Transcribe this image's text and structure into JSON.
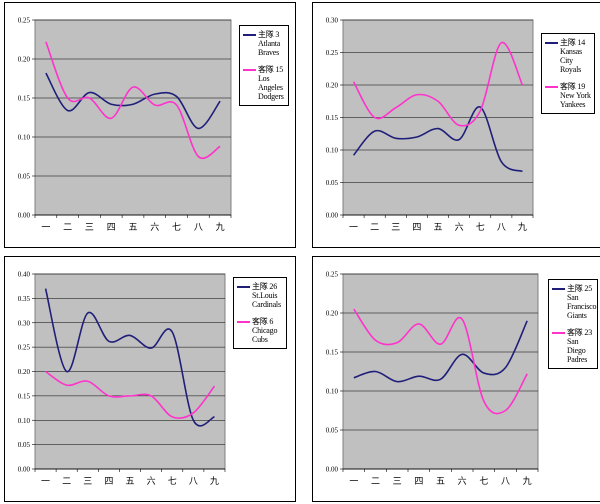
{
  "colors": {
    "team1": "#1f1f7a",
    "team2": "#ff33cc",
    "plot_bg": "#c0c0c0",
    "grid": "#000000"
  },
  "chart_data": [
    {
      "type": "line",
      "x": [
        "一",
        "二",
        "三",
        "四",
        "五",
        "六",
        "七",
        "八",
        "九"
      ],
      "ylim": [
        0,
        0.25
      ],
      "yticks": [
        "0.00",
        "0.05",
        "0.10",
        "0.15",
        "0.20",
        "0.25"
      ],
      "grid": true,
      "legend_position": "right",
      "series": [
        {
          "name": "主隊 3\nAtlanta\nBraves",
          "values": [
            0.182,
            0.134,
            0.157,
            0.142,
            0.142,
            0.155,
            0.152,
            0.111,
            0.146
          ]
        },
        {
          "name": "客隊 15\nLos\nAngeles\nDodgers",
          "values": [
            0.222,
            0.15,
            0.15,
            0.124,
            0.164,
            0.141,
            0.141,
            0.075,
            0.088
          ]
        }
      ]
    },
    {
      "type": "line",
      "x": [
        "一",
        "二",
        "三",
        "四",
        "五",
        "六",
        "七",
        "八",
        "九"
      ],
      "ylim": [
        0,
        0.3
      ],
      "yticks": [
        "0.00",
        "0.05",
        "0.10",
        "0.15",
        "0.20",
        "0.25",
        "0.30"
      ],
      "grid": true,
      "legend_position": "right",
      "series": [
        {
          "name": "主隊 14\nKansas City\nRoyals",
          "values": [
            0.092,
            0.129,
            0.118,
            0.12,
            0.133,
            0.116,
            0.166,
            0.082,
            0.067
          ]
        },
        {
          "name": "客隊 19\nNew York\nYankees",
          "values": [
            0.205,
            0.15,
            0.165,
            0.185,
            0.175,
            0.138,
            0.16,
            0.265,
            0.2
          ]
        }
      ]
    },
    {
      "type": "line",
      "x": [
        "一",
        "二",
        "三",
        "四",
        "五",
        "六",
        "七",
        "八",
        "九"
      ],
      "ylim": [
        0,
        0.4
      ],
      "yticks": [
        "0.00",
        "0.05",
        "0.10",
        "0.15",
        "0.20",
        "0.25",
        "0.30",
        "0.35",
        "0.40"
      ],
      "grid": true,
      "legend_position": "right",
      "series": [
        {
          "name": "主隊 26\nSt.Louis\nCardinals",
          "values": [
            0.37,
            0.2,
            0.32,
            0.262,
            0.274,
            0.248,
            0.281,
            0.1,
            0.107
          ]
        },
        {
          "name": "客隊 6\nChicago\nCubs",
          "values": [
            0.2,
            0.172,
            0.18,
            0.15,
            0.15,
            0.15,
            0.107,
            0.115,
            0.17
          ]
        }
      ]
    },
    {
      "type": "line",
      "x": [
        "一",
        "二",
        "三",
        "四",
        "五",
        "六",
        "七",
        "八",
        "九"
      ],
      "ylim": [
        0,
        0.25
      ],
      "yticks": [
        "0.00",
        "0.05",
        "0.10",
        "0.15",
        "0.20",
        "0.25"
      ],
      "grid": true,
      "legend_position": "right",
      "series": [
        {
          "name": "主隊 25\nSan\nFrancisco\nGiants",
          "values": [
            0.117,
            0.125,
            0.112,
            0.119,
            0.115,
            0.147,
            0.123,
            0.13,
            0.19
          ]
        },
        {
          "name": "客隊 23\nSan Diego\nPadres",
          "values": [
            0.205,
            0.165,
            0.162,
            0.186,
            0.16,
            0.192,
            0.087,
            0.075,
            0.122
          ]
        }
      ]
    }
  ]
}
